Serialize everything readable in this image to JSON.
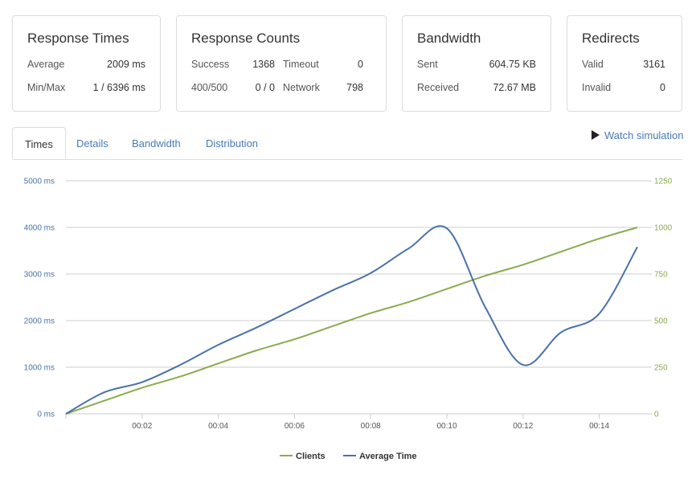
{
  "cards": {
    "response_times": {
      "title": "Response Times",
      "rows": [
        {
          "label": "Average",
          "value": "2009 ms"
        },
        {
          "label": "Min/Max",
          "value": "1 / 6396 ms"
        }
      ]
    },
    "response_counts": {
      "title": "Response Counts",
      "success_label": "Success",
      "success_value": "1368",
      "timeout_label": "Timeout",
      "timeout_value": "0",
      "errors_label": "400/500",
      "errors_value": "0 / 0",
      "network_label": "Network",
      "network_value": "798"
    },
    "bandwidth": {
      "title": "Bandwidth",
      "rows": [
        {
          "label": "Sent",
          "value": "604.75 KB"
        },
        {
          "label": "Received",
          "value": "72.67 MB"
        }
      ]
    },
    "redirects": {
      "title": "Redirects",
      "rows": [
        {
          "label": "Valid",
          "value": "3161"
        },
        {
          "label": "Invalid",
          "value": "0"
        }
      ]
    }
  },
  "tabs": [
    {
      "label": "Times",
      "active": true
    },
    {
      "label": "Details",
      "active": false
    },
    {
      "label": "Bandwidth",
      "active": false
    },
    {
      "label": "Distribution",
      "active": false
    }
  ],
  "watch_simulation_label": "Watch simulation",
  "colors": {
    "clients": "#8aab4f",
    "average_time": "#4a72a8",
    "link": "#4a7ab5",
    "grid": "#cccccc"
  },
  "chart_data": {
    "type": "line",
    "title": "",
    "x": [
      "00:00",
      "00:01",
      "00:02",
      "00:03",
      "00:04",
      "00:05",
      "00:06",
      "00:07",
      "00:08",
      "00:09",
      "00:10",
      "00:11",
      "00:12",
      "00:13",
      "00:14",
      "00:15"
    ],
    "x_tick_labels": [
      "00:02",
      "00:04",
      "00:06",
      "00:08",
      "00:10",
      "00:12",
      "00:14"
    ],
    "y_left": {
      "ticks": [
        "0 ms",
        "1000 ms",
        "2000 ms",
        "3000 ms",
        "4000 ms",
        "5000 ms"
      ],
      "range": [
        0,
        5000
      ]
    },
    "y_right": {
      "ticks": [
        "0",
        "250",
        "500",
        "750",
        "1000",
        "1250"
      ],
      "range": [
        0,
        1250
      ]
    },
    "series": [
      {
        "name": "Clients",
        "axis": "right",
        "color": "#8aab4f",
        "values": [
          0,
          70,
          140,
          200,
          270,
          340,
          400,
          470,
          540,
          600,
          670,
          740,
          800,
          870,
          940,
          1000
        ]
      },
      {
        "name": "Average Time",
        "axis": "left",
        "color": "#4a72a8",
        "values": [
          0,
          460,
          680,
          1050,
          1480,
          1850,
          2250,
          2650,
          3020,
          3550,
          3980,
          2300,
          1050,
          1750,
          2150,
          3580
        ]
      }
    ],
    "legend_position": "bottom",
    "grid": true
  }
}
